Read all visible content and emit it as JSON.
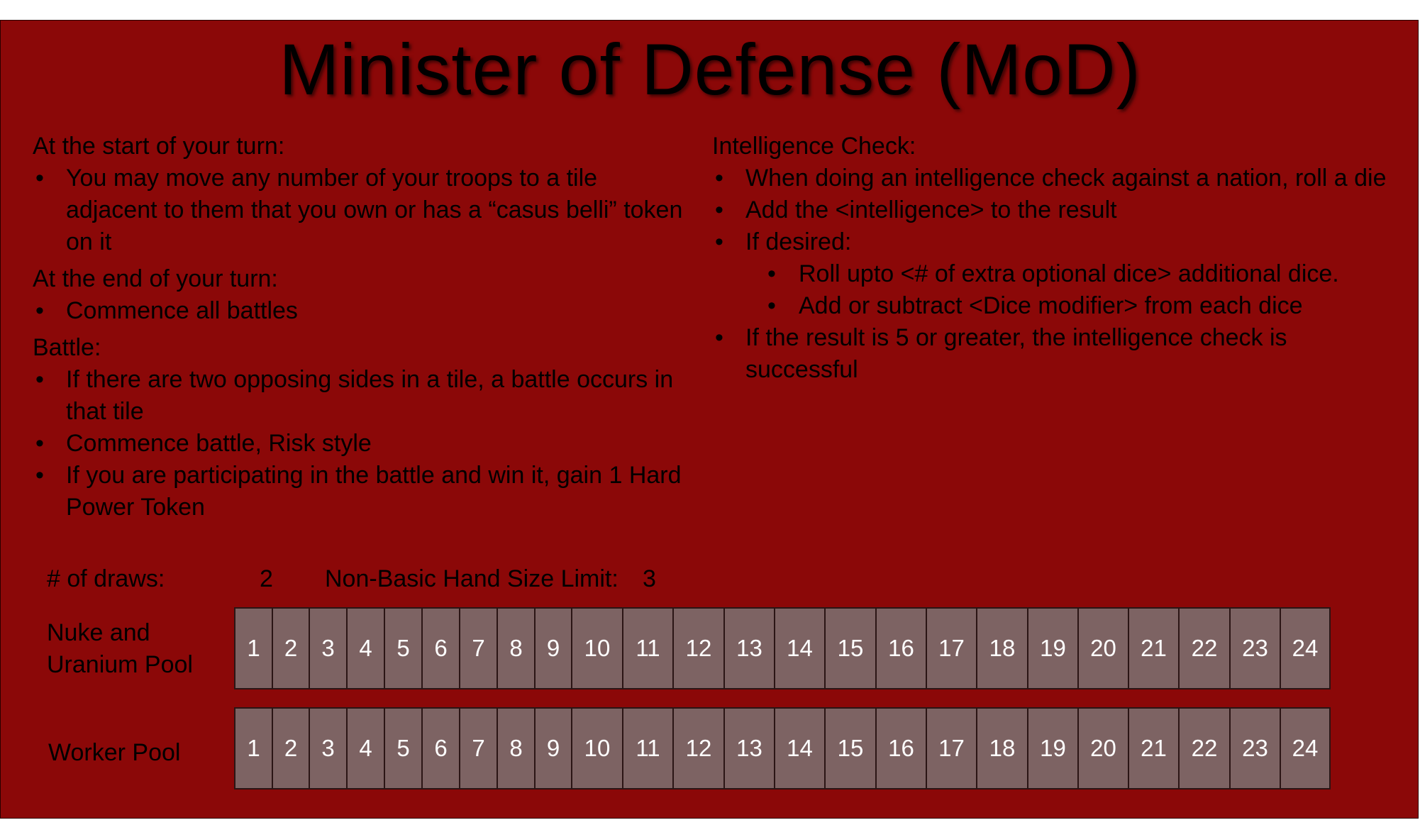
{
  "title": "Minister of Defense (MoD)",
  "left": {
    "start_heading": "At the start of your turn:",
    "start_items": [
      "You may move any number of your troops to a tile adjacent to them that you own or has a “casus belli” token on it"
    ],
    "end_heading": "At the end of your turn:",
    "end_items": [
      "Commence all battles"
    ],
    "battle_heading": "Battle:",
    "battle_items": [
      "If there are two opposing sides in a tile, a battle occurs in that tile",
      "Commence battle, Risk style",
      "If you are participating in the battle and win it, gain 1 Hard Power Token"
    ]
  },
  "right": {
    "heading": "Intelligence Check:",
    "item1": "When doing an intelligence check against a nation, roll a die",
    "item2": "Add the <intelligence>  to the result",
    "item3": "If desired:",
    "sub1": "Roll upto <# of extra optional dice> additional dice.",
    "sub2": "Add or subtract <Dice modifier> from each dice",
    "item4": "If the result is 5 or greater, the intelligence check is successful"
  },
  "stats": {
    "draws_label": "# of draws:",
    "draws_value": "2",
    "hand_label": "Non-Basic Hand Size Limit:",
    "hand_value": "3"
  },
  "pools": {
    "nuke_label_line1": "Nuke and",
    "nuke_label_line2": "Uranium Pool",
    "worker_label": "Worker Pool",
    "cells": [
      "1",
      "2",
      "3",
      "4",
      "5",
      "6",
      "7",
      "8",
      "9",
      "10",
      "11",
      "12",
      "13",
      "14",
      "15",
      "16",
      "17",
      "18",
      "19",
      "20",
      "21",
      "22",
      "23",
      "24"
    ]
  },
  "colors": {
    "background": "#8b0808",
    "cell": "#7d6363"
  }
}
